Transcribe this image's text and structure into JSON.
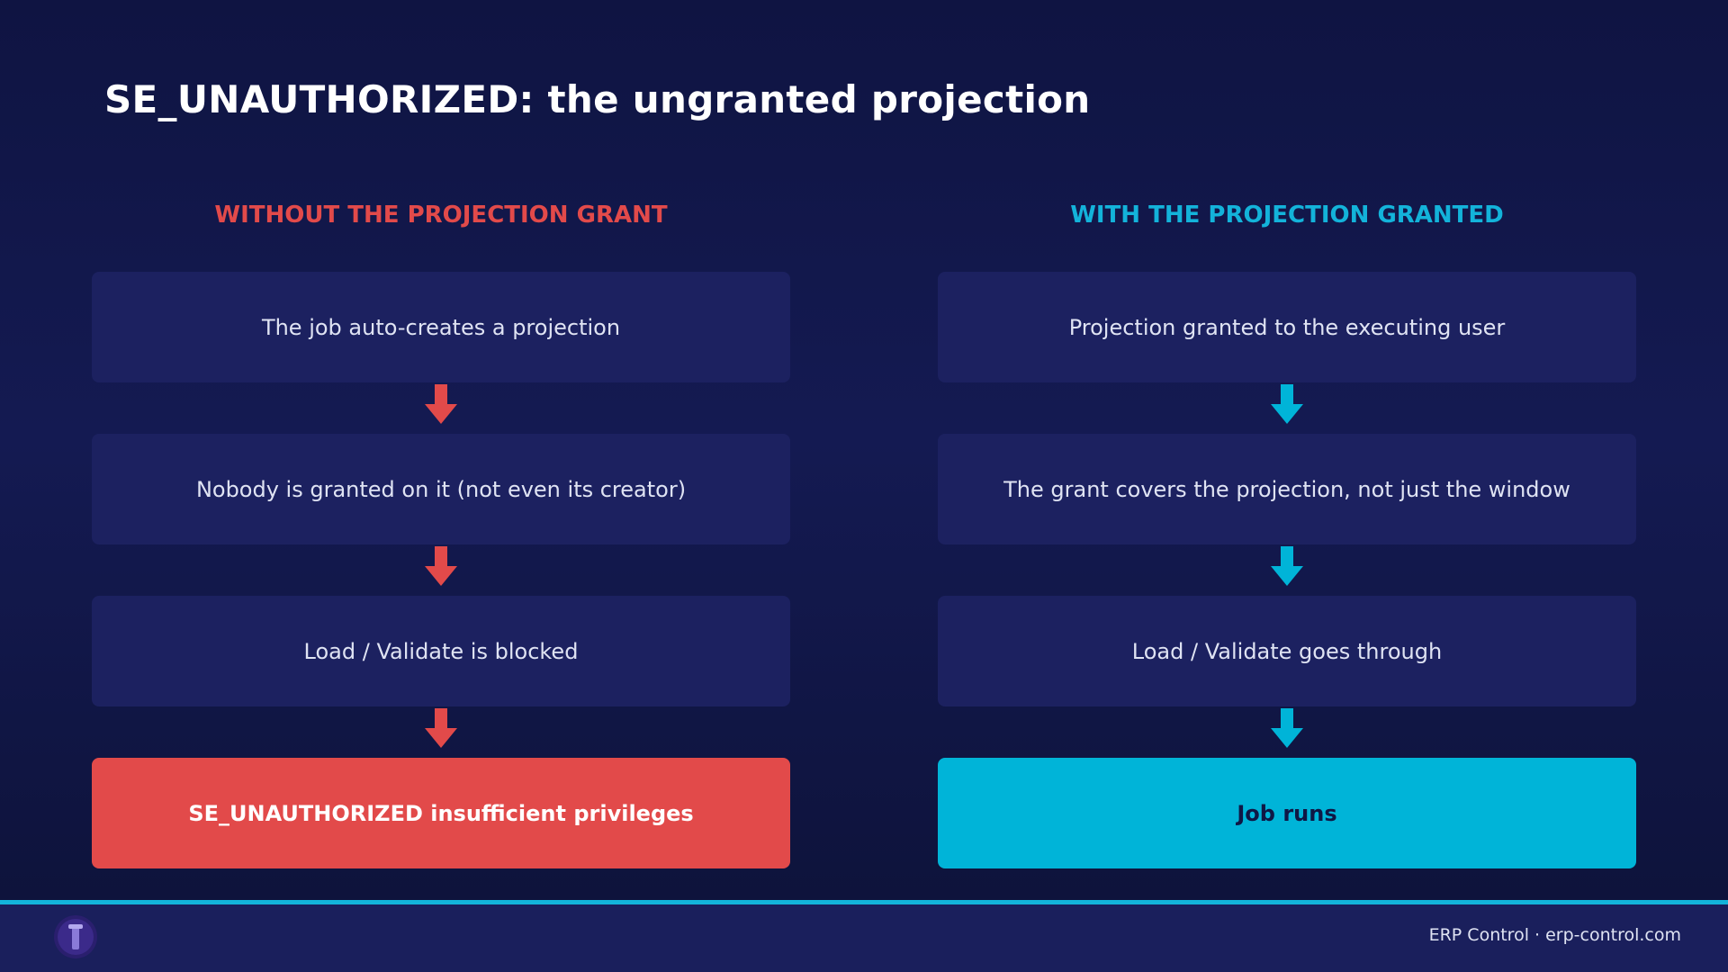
{
  "title": "SE_UNAUTHORIZED: the ungranted projection",
  "left": {
    "heading": "WITHOUT THE PROJECTION GRANT",
    "steps": [
      "The job auto-creates a projection",
      "Nobody is granted on it (not even its creator)",
      "Load / Validate is blocked"
    ],
    "result": "SE_UNAUTHORIZED insufficient privileges"
  },
  "right": {
    "heading": "WITH THE PROJECTION GRANTED",
    "steps": [
      "Projection granted to the executing user",
      "The grant covers the projection, not just the window",
      "Load / Validate goes through"
    ],
    "result": "Job runs"
  },
  "footer": "ERP Control · erp-control.com"
}
